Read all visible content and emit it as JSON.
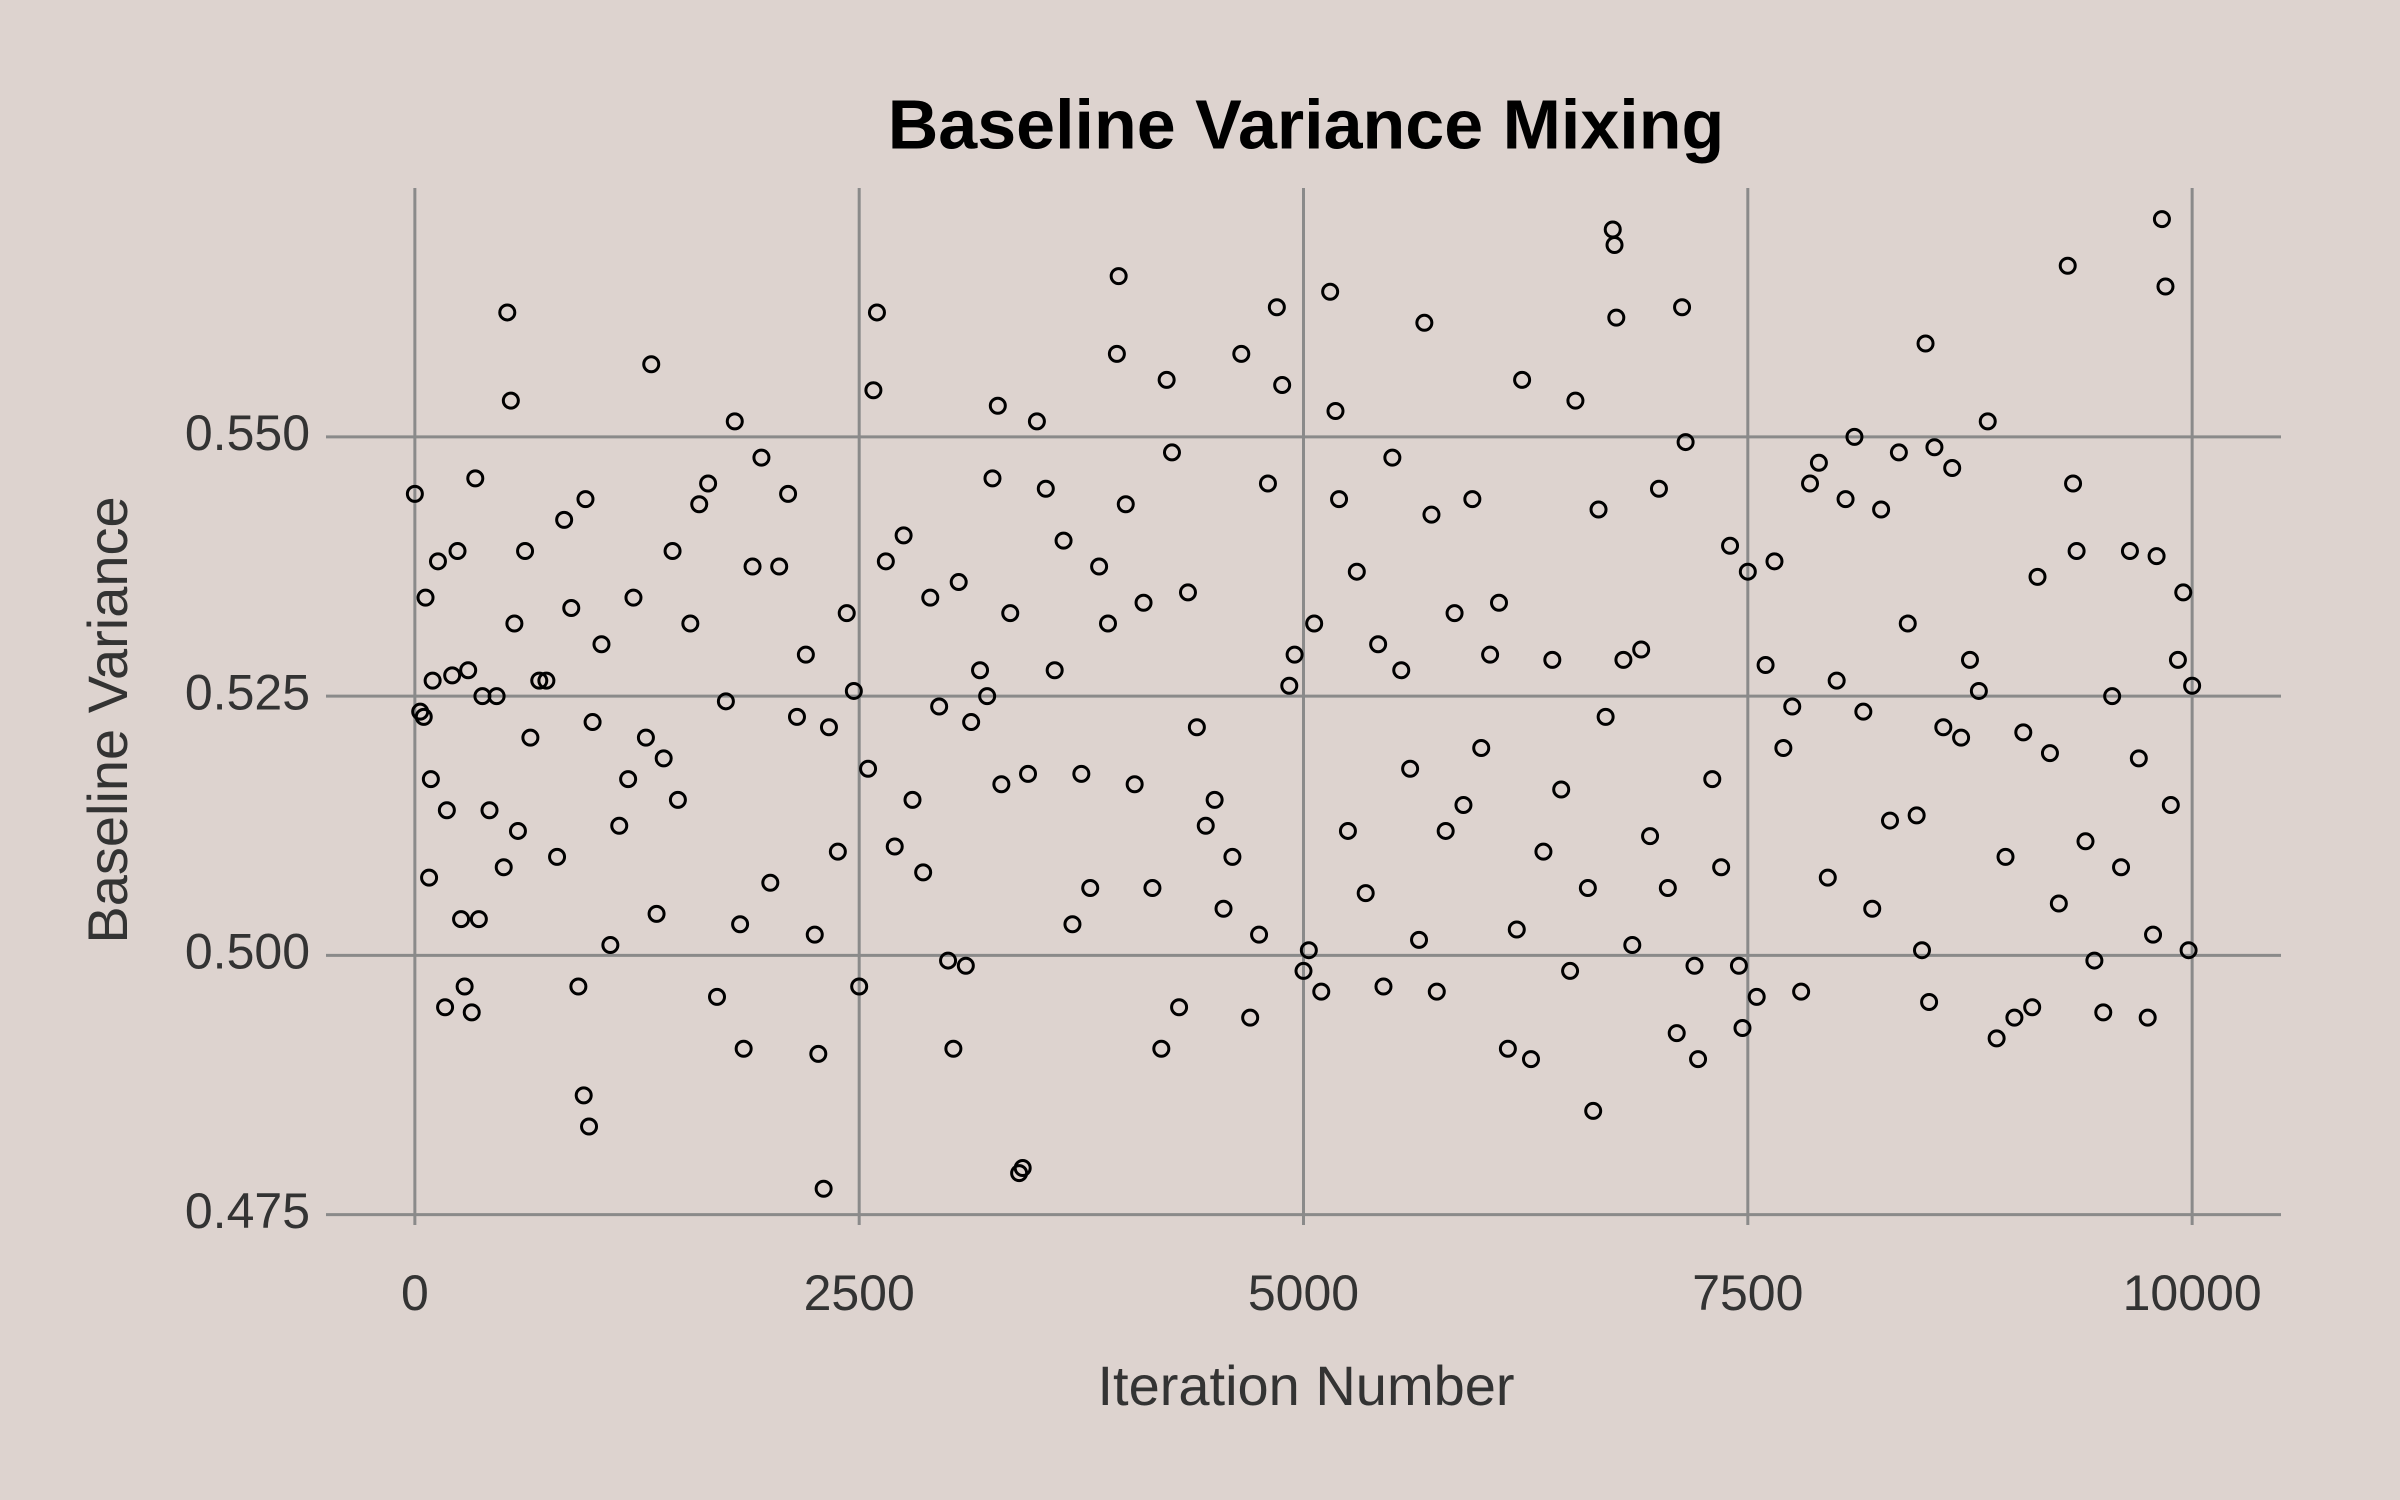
{
  "chart_data": {
    "type": "scatter",
    "title": "Baseline Variance Mixing",
    "x_label": "Iteration Number",
    "y_label": "Baseline Variance",
    "color": "#000000",
    "grid": true,
    "xlim": [
      -500,
      10500
    ],
    "xticks": [
      0,
      2500,
      5000,
      7500,
      10000
    ],
    "ylim": [
      0.474,
      0.574
    ],
    "yticks": [
      {
        "value": 0.475,
        "label": "0.475"
      },
      {
        "value": 0.5,
        "label": "0.500"
      },
      {
        "value": 0.525,
        "label": "0.525"
      },
      {
        "value": 0.55,
        "label": "0.550"
      }
    ],
    "x": [
      0,
      30,
      50,
      60,
      80,
      90,
      100,
      130,
      170,
      180,
      210,
      240,
      260,
      280,
      300,
      320,
      340,
      360,
      380,
      420,
      460,
      500,
      520,
      540,
      560,
      580,
      620,
      650,
      700,
      740,
      800,
      840,
      880,
      920,
      950,
      960,
      980,
      1000,
      1050,
      1100,
      1150,
      1200,
      1230,
      1300,
      1330,
      1360,
      1400,
      1450,
      1480,
      1550,
      1600,
      1650,
      1700,
      1750,
      1800,
      1830,
      1850,
      1900,
      1950,
      2000,
      2050,
      2100,
      2150,
      2200,
      2250,
      2270,
      2300,
      2330,
      2380,
      2430,
      2470,
      2500,
      2550,
      2580,
      2600,
      2650,
      2700,
      2750,
      2800,
      2860,
      2900,
      2950,
      3000,
      3030,
      3060,
      3100,
      3130,
      3180,
      3220,
      3250,
      3280,
      3300,
      3350,
      3400,
      3420,
      3450,
      3500,
      3550,
      3600,
      3650,
      3700,
      3750,
      3800,
      3850,
      3900,
      3950,
      3960,
      4000,
      4050,
      4100,
      4150,
      4200,
      4230,
      4260,
      4300,
      4350,
      4400,
      4450,
      4500,
      4550,
      4600,
      4650,
      4700,
      4750,
      4800,
      4850,
      4880,
      4920,
      4950,
      5000,
      5030,
      5060,
      5100,
      5150,
      5180,
      5200,
      5250,
      5300,
      5350,
      5420,
      5450,
      5500,
      5550,
      5600,
      5650,
      5680,
      5720,
      5750,
      5800,
      5850,
      5900,
      5950,
      6000,
      6050,
      6100,
      6150,
      6200,
      6230,
      6280,
      6350,
      6400,
      6450,
      6500,
      6530,
      6600,
      6630,
      6660,
      6700,
      6740,
      6750,
      6760,
      6800,
      6850,
      6900,
      6950,
      7000,
      7050,
      7100,
      7130,
      7150,
      7200,
      7220,
      7300,
      7350,
      7400,
      7450,
      7470,
      7500,
      7550,
      7600,
      7650,
      7700,
      7750,
      7800,
      7850,
      7900,
      7950,
      8000,
      8050,
      8100,
      8150,
      8200,
      8250,
      8300,
      8350,
      8400,
      8450,
      8480,
      8500,
      8520,
      8550,
      8600,
      8650,
      8700,
      8750,
      8800,
      8850,
      8900,
      8950,
      9000,
      9050,
      9100,
      9130,
      9200,
      9250,
      9300,
      9330,
      9350,
      9400,
      9450,
      9500,
      9550,
      9600,
      9650,
      9700,
      9750,
      9780,
      9800,
      9830,
      9850,
      9880,
      9920,
      9950,
      9980,
      10000
    ],
    "values": [
      0.5445,
      0.5235,
      0.523,
      0.5345,
      0.5075,
      0.517,
      0.5265,
      0.538,
      0.495,
      0.514,
      0.527,
      0.539,
      0.5035,
      0.497,
      0.5275,
      0.4945,
      0.546,
      0.5035,
      0.525,
      0.514,
      0.525,
      0.5085,
      0.562,
      0.5535,
      0.532,
      0.512,
      0.539,
      0.521,
      0.5265,
      0.5265,
      0.5095,
      0.542,
      0.5335,
      0.497,
      0.4865,
      0.544,
      0.4835,
      0.5225,
      0.53,
      0.501,
      0.5125,
      0.517,
      0.5345,
      0.521,
      0.557,
      0.504,
      0.519,
      0.539,
      0.515,
      0.532,
      0.5435,
      0.5455,
      0.496,
      0.5245,
      0.5515,
      0.503,
      0.491,
      0.5375,
      0.548,
      0.507,
      0.5375,
      0.5445,
      0.523,
      0.529,
      0.502,
      0.4905,
      0.4775,
      0.522,
      0.51,
      0.533,
      0.5255,
      0.497,
      0.518,
      0.5545,
      0.562,
      0.538,
      0.5105,
      0.5405,
      0.515,
      0.508,
      0.5345,
      0.524,
      0.4995,
      0.491,
      0.536,
      0.499,
      0.5225,
      0.5275,
      0.525,
      0.546,
      0.553,
      0.5165,
      0.533,
      0.479,
      0.4795,
      0.5175,
      0.5515,
      0.545,
      0.5275,
      0.54,
      0.503,
      0.5175,
      0.5065,
      0.5375,
      0.532,
      0.558,
      0.5655,
      0.5435,
      0.5165,
      0.534,
      0.5065,
      0.491,
      0.5555,
      0.5485,
      0.495,
      0.535,
      0.522,
      0.5125,
      0.515,
      0.5045,
      0.5095,
      0.558,
      0.494,
      0.502,
      0.5455,
      0.5625,
      0.555,
      0.526,
      0.529,
      0.4985,
      0.5005,
      0.532,
      0.4965,
      0.564,
      0.5525,
      0.544,
      0.512,
      0.537,
      0.506,
      0.53,
      0.497,
      0.548,
      0.5275,
      0.518,
      0.5015,
      0.561,
      0.5425,
      0.4965,
      0.512,
      0.533,
      0.5145,
      0.544,
      0.52,
      0.529,
      0.534,
      0.491,
      0.5025,
      0.5555,
      0.49,
      0.51,
      0.5285,
      0.516,
      0.4985,
      0.5535,
      0.5065,
      0.485,
      0.543,
      0.523,
      0.57,
      0.5685,
      0.5615,
      0.5285,
      0.501,
      0.5295,
      0.5115,
      0.545,
      0.5065,
      0.4925,
      0.5625,
      0.5495,
      0.499,
      0.49,
      0.517,
      0.5085,
      0.5395,
      0.499,
      0.493,
      0.537,
      0.496,
      0.528,
      0.538,
      0.52,
      0.524,
      0.4965,
      0.5455,
      0.5475,
      0.5075,
      0.5265,
      0.544,
      0.55,
      0.5235,
      0.5045,
      0.543,
      0.513,
      0.5485,
      0.532,
      0.5135,
      0.5005,
      0.559,
      0.4955,
      0.549,
      0.522,
      0.547,
      0.521,
      0.5285,
      0.5255,
      0.5515,
      0.492,
      0.5095,
      0.494,
      0.5215,
      0.495,
      0.5365,
      0.5195,
      0.505,
      0.5665,
      0.5455,
      0.539,
      0.511,
      0.4995,
      0.4945,
      0.525,
      0.5085,
      0.539,
      0.519,
      0.494,
      0.502,
      0.5385,
      0.571,
      0.5645,
      0.5145,
      0.5285,
      0.535,
      0.5005,
      0.526
    ]
  }
}
